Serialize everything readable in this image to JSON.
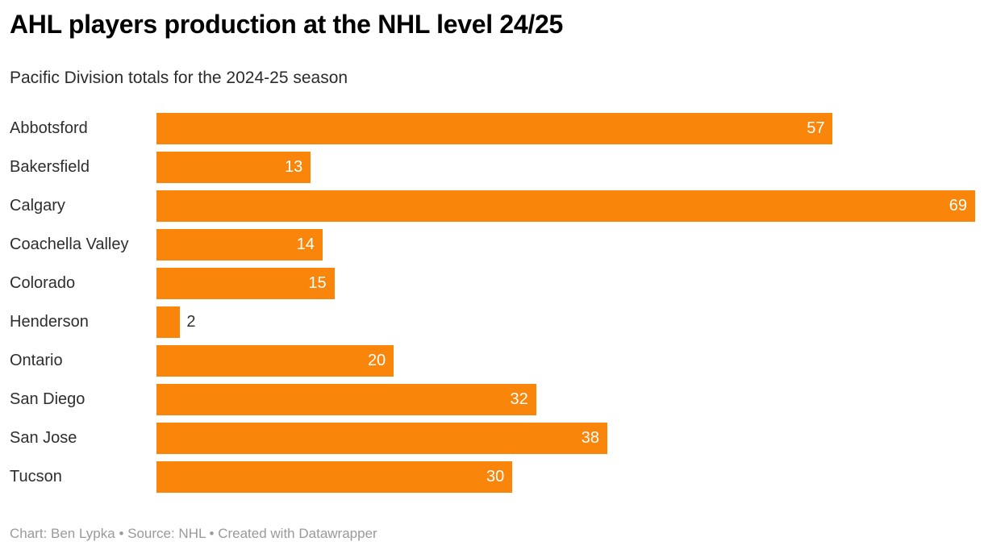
{
  "header": {
    "title": "AHL players production at the NHL level 24/25",
    "subtitle": "Pacific Division totals for the 2024-25 season"
  },
  "footer": {
    "text": "Chart: Ben Lypka • Source: NHL • Created with Datawrapper"
  },
  "colors": {
    "bar": "#f9850b",
    "value_label_inside": "#ffffff",
    "value_label_outside": "#333333",
    "category_label": "#2e2e2e",
    "footer_text": "#9a9a9a"
  },
  "chart_data": {
    "type": "bar",
    "orientation": "horizontal",
    "title": "AHL players production at the NHL level 24/25",
    "subtitle": "Pacific Division totals for the 2024-25 season",
    "categories": [
      "Abbotsford",
      "Bakersfield",
      "Calgary",
      "Coachella Valley",
      "Colorado",
      "Henderson",
      "Ontario",
      "San Diego",
      "San Jose",
      "Tucson"
    ],
    "values": [
      57,
      13,
      69,
      14,
      15,
      2,
      20,
      32,
      38,
      30
    ],
    "xlabel": "",
    "ylabel": "",
    "xlim": [
      0,
      69
    ],
    "grid": false,
    "legend": false,
    "data_labels": "inside-end, outside-end when bar too short",
    "source": "NHL",
    "credit": "Ben Lypka",
    "tool": "Datawrapper"
  }
}
